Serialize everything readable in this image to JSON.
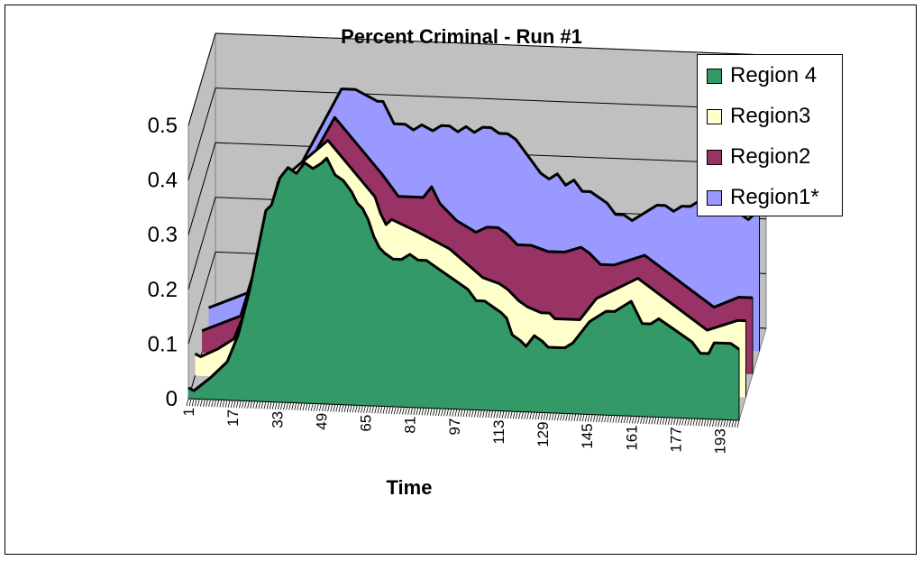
{
  "chart_data": {
    "type": "area",
    "title": "Percent Criminal - Run #1",
    "xlabel": "Time",
    "ylabel": "",
    "ylim": [
      0,
      0.5
    ],
    "yticks": [
      "0",
      "0.1",
      "0.2",
      "0.3",
      "0.4",
      "0.5"
    ],
    "xticks": [
      "1",
      "17",
      "33",
      "49",
      "65",
      "81",
      "97",
      "113",
      "129",
      "145",
      "161",
      "177",
      "193"
    ],
    "x_range": [
      1,
      200
    ],
    "stacking": "3d-area (series drawn in depth)",
    "legend_position": "top-right",
    "series": [
      {
        "name": "Region 4",
        "color": "#339966",
        "points": [
          [
            1,
            0.02
          ],
          [
            3,
            0.015
          ],
          [
            9,
            0.04
          ],
          [
            15,
            0.07
          ],
          [
            19,
            0.12
          ],
          [
            23,
            0.2
          ],
          [
            27,
            0.3
          ],
          [
            29,
            0.35
          ],
          [
            31,
            0.36
          ],
          [
            34,
            0.41
          ],
          [
            37,
            0.43
          ],
          [
            40,
            0.42
          ],
          [
            43,
            0.44
          ],
          [
            46,
            0.43
          ],
          [
            49,
            0.44
          ],
          [
            51,
            0.45
          ],
          [
            54,
            0.42
          ],
          [
            57,
            0.41
          ],
          [
            60,
            0.39
          ],
          [
            62,
            0.37
          ],
          [
            64,
            0.36
          ],
          [
            66,
            0.34
          ],
          [
            68,
            0.31
          ],
          [
            70,
            0.29
          ],
          [
            72,
            0.28
          ],
          [
            75,
            0.27
          ],
          [
            78,
            0.27
          ],
          [
            81,
            0.28
          ],
          [
            84,
            0.27
          ],
          [
            87,
            0.27
          ],
          [
            90,
            0.26
          ],
          [
            93,
            0.25
          ],
          [
            96,
            0.24
          ],
          [
            99,
            0.23
          ],
          [
            102,
            0.22
          ],
          [
            105,
            0.2
          ],
          [
            108,
            0.2
          ],
          [
            111,
            0.19
          ],
          [
            114,
            0.18
          ],
          [
            116,
            0.17
          ],
          [
            118,
            0.14
          ],
          [
            121,
            0.13
          ],
          [
            123,
            0.12
          ],
          [
            126,
            0.14
          ],
          [
            129,
            0.13
          ],
          [
            131,
            0.12
          ],
          [
            134,
            0.12
          ],
          [
            137,
            0.12
          ],
          [
            140,
            0.13
          ],
          [
            143,
            0.15
          ],
          [
            146,
            0.17
          ],
          [
            149,
            0.18
          ],
          [
            152,
            0.19
          ],
          [
            155,
            0.19
          ],
          [
            158,
            0.2
          ],
          [
            161,
            0.21
          ],
          [
            163,
            0.19
          ],
          [
            165,
            0.17
          ],
          [
            168,
            0.17
          ],
          [
            171,
            0.18
          ],
          [
            174,
            0.17
          ],
          [
            177,
            0.16
          ],
          [
            180,
            0.15
          ],
          [
            183,
            0.14
          ],
          [
            186,
            0.12
          ],
          [
            189,
            0.12
          ],
          [
            191,
            0.14
          ],
          [
            194,
            0.14
          ],
          [
            197,
            0.14
          ],
          [
            200,
            0.13
          ]
        ]
      },
      {
        "name": "Region3",
        "color": "#ffffcc",
        "points": [
          [
            1,
            0.04
          ],
          [
            3,
            0.035
          ],
          [
            9,
            0.05
          ],
          [
            15,
            0.07
          ],
          [
            19,
            0.12
          ],
          [
            23,
            0.2
          ],
          [
            31,
            0.36
          ],
          [
            49,
            0.44
          ],
          [
            66,
            0.34
          ],
          [
            68,
            0.31
          ],
          [
            70,
            0.29
          ],
          [
            72,
            0.3
          ],
          [
            81,
            0.28
          ],
          [
            93,
            0.25
          ],
          [
            105,
            0.2
          ],
          [
            111,
            0.19
          ],
          [
            114,
            0.18
          ],
          [
            116,
            0.17
          ],
          [
            118,
            0.16
          ],
          [
            121,
            0.15
          ],
          [
            126,
            0.14
          ],
          [
            129,
            0.14
          ],
          [
            131,
            0.13
          ],
          [
            137,
            0.13
          ],
          [
            140,
            0.13
          ],
          [
            146,
            0.17
          ],
          [
            161,
            0.21
          ],
          [
            186,
            0.12
          ],
          [
            197,
            0.14
          ],
          [
            200,
            0.14
          ]
        ]
      },
      {
        "name": "Region2",
        "color": "#993366",
        "points": [
          [
            1,
            0.04
          ],
          [
            15,
            0.07
          ],
          [
            23,
            0.2
          ],
          [
            49,
            0.44
          ],
          [
            66,
            0.34
          ],
          [
            72,
            0.3
          ],
          [
            81,
            0.3
          ],
          [
            84,
            0.32
          ],
          [
            87,
            0.29
          ],
          [
            93,
            0.26
          ],
          [
            100,
            0.24
          ],
          [
            104,
            0.25
          ],
          [
            108,
            0.25
          ],
          [
            111,
            0.24
          ],
          [
            115,
            0.22
          ],
          [
            120,
            0.22
          ],
          [
            126,
            0.21
          ],
          [
            132,
            0.21
          ],
          [
            138,
            0.22
          ],
          [
            141,
            0.21
          ],
          [
            145,
            0.19
          ],
          [
            150,
            0.19
          ],
          [
            161,
            0.21
          ],
          [
            186,
            0.12
          ],
          [
            195,
            0.14
          ],
          [
            200,
            0.14
          ]
        ]
      },
      {
        "name": "Region1*",
        "color": "#9999ff",
        "points": [
          [
            1,
            0.04
          ],
          [
            15,
            0.07
          ],
          [
            23,
            0.2
          ],
          [
            49,
            0.45
          ],
          [
            54,
            0.45
          ],
          [
            58,
            0.44
          ],
          [
            62,
            0.43
          ],
          [
            64,
            0.43
          ],
          [
            66,
            0.41
          ],
          [
            68,
            0.39
          ],
          [
            72,
            0.39
          ],
          [
            75,
            0.38
          ],
          [
            78,
            0.39
          ],
          [
            82,
            0.38
          ],
          [
            85,
            0.39
          ],
          [
            88,
            0.39
          ],
          [
            91,
            0.38
          ],
          [
            94,
            0.39
          ],
          [
            97,
            0.38
          ],
          [
            100,
            0.39
          ],
          [
            103,
            0.39
          ],
          [
            106,
            0.38
          ],
          [
            109,
            0.38
          ],
          [
            112,
            0.37
          ],
          [
            115,
            0.35
          ],
          [
            118,
            0.33
          ],
          [
            121,
            0.31
          ],
          [
            124,
            0.3
          ],
          [
            127,
            0.31
          ],
          [
            130,
            0.29
          ],
          [
            133,
            0.3
          ],
          [
            136,
            0.28
          ],
          [
            139,
            0.28
          ],
          [
            142,
            0.27
          ],
          [
            145,
            0.26
          ],
          [
            148,
            0.24
          ],
          [
            151,
            0.24
          ],
          [
            154,
            0.23
          ],
          [
            157,
            0.24
          ],
          [
            160,
            0.25
          ],
          [
            163,
            0.26
          ],
          [
            166,
            0.26
          ],
          [
            169,
            0.25
          ],
          [
            172,
            0.26
          ],
          [
            175,
            0.26
          ],
          [
            178,
            0.27
          ],
          [
            181,
            0.25
          ],
          [
            184,
            0.26
          ],
          [
            187,
            0.25
          ],
          [
            190,
            0.26
          ],
          [
            193,
            0.25
          ],
          [
            196,
            0.24
          ],
          [
            198,
            0.25
          ],
          [
            200,
            0.25
          ]
        ]
      }
    ],
    "legend": [
      "Region 4",
      "Region3",
      "Region2",
      "Region1*"
    ]
  },
  "colors": {
    "wall": "#c0c0c0",
    "floor": "#c0c0c0",
    "frame_border": "#000000"
  }
}
